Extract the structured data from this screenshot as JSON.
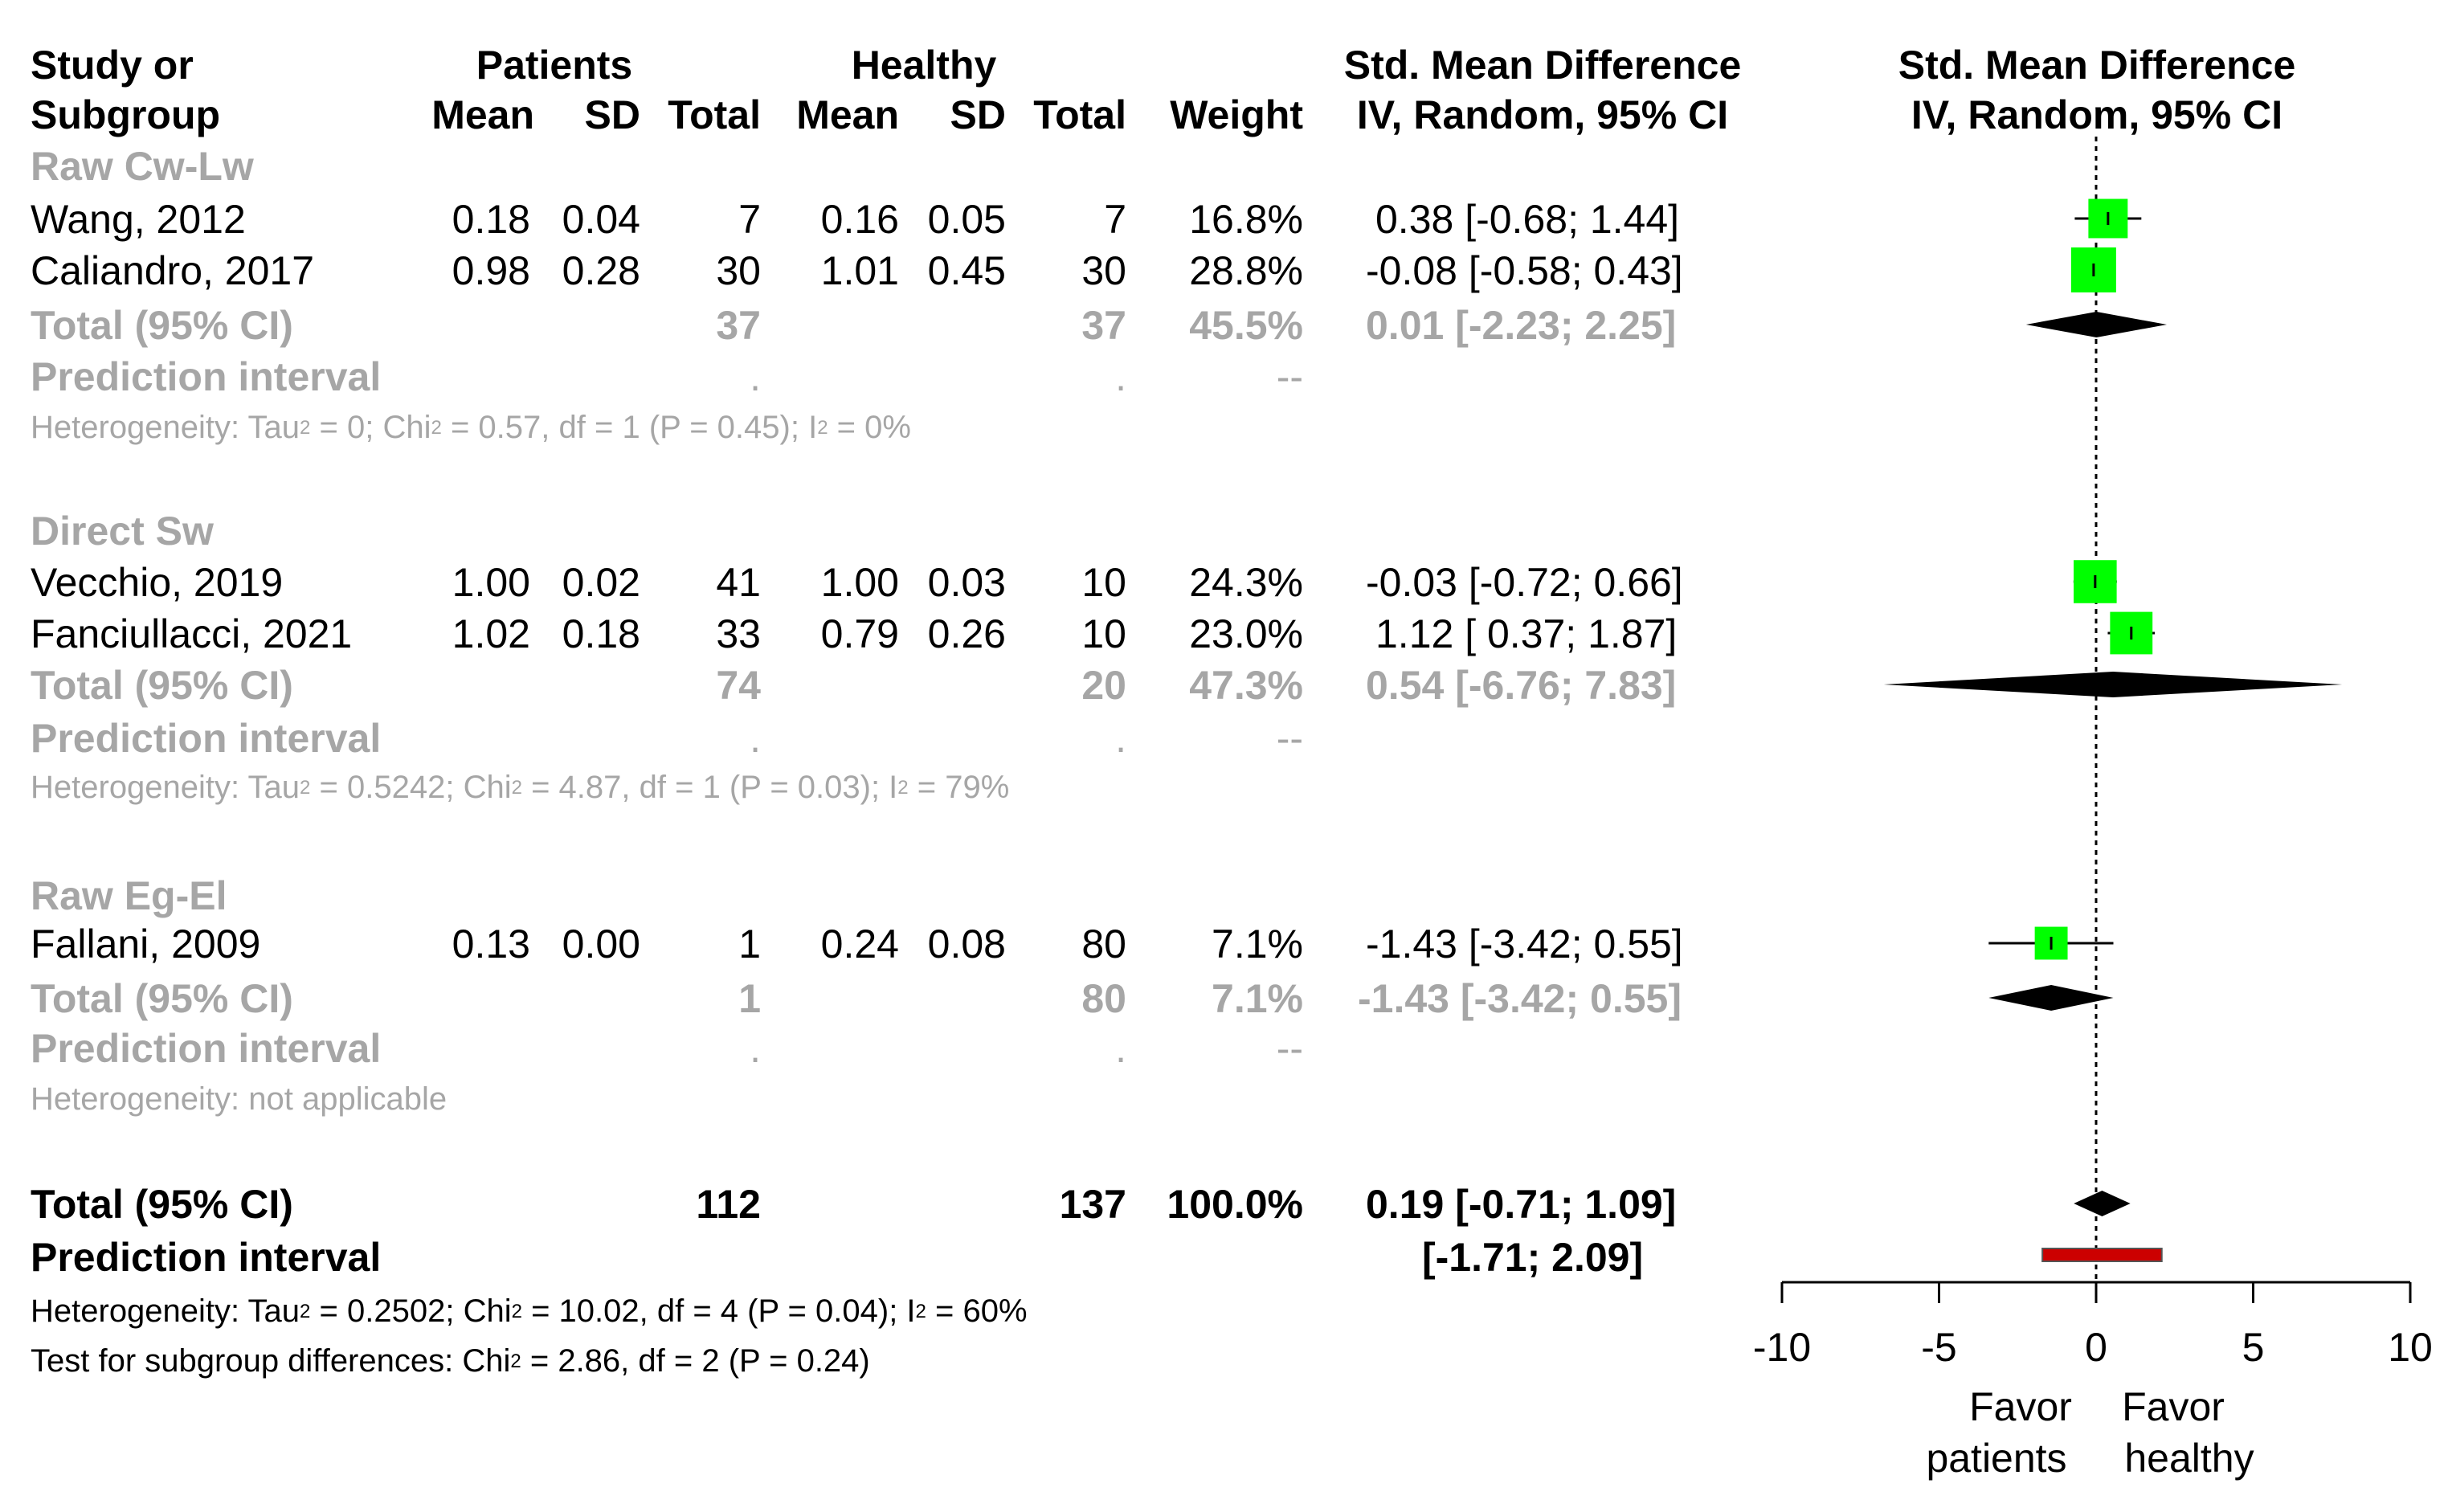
{
  "headers": {
    "study_line1": "Study or",
    "study_line2": "Subgroup",
    "patients": "Patients",
    "healthy": "Healthy",
    "mean": "Mean",
    "sd": "SD",
    "total": "Total",
    "weight": "Weight",
    "smd_line1": "Std. Mean Difference",
    "smd_line2": "IV, Random, 95% CI",
    "plot_line1": "Std. Mean Difference",
    "plot_line2": "IV, Random, 95% CI"
  },
  "subgroups": [
    {
      "label": "Raw Cw-Lw",
      "studies": [
        {
          "name": "Wang, 2012",
          "p_mean": "0.18",
          "p_sd": "0.04",
          "p_total": "7",
          "h_mean": "0.16",
          "h_sd": "0.05",
          "h_total": "7",
          "weight": "16.8%",
          "ci": "0.38 [-0.68; 1.44]"
        },
        {
          "name": "Caliandro, 2017",
          "p_mean": "0.98",
          "p_sd": "0.28",
          "p_total": "30",
          "h_mean": "1.01",
          "h_sd": "0.45",
          "h_total": "30",
          "weight": "28.8%",
          "ci": "-0.08 [-0.58; 0.43]"
        }
      ],
      "total_label": "Total (95% CI)",
      "total_p": "37",
      "total_h": "37",
      "total_weight": "45.5%",
      "total_ci": "0.01 [-2.23; 2.25]",
      "pi_label": "Prediction interval",
      "pi_p_dot": ".",
      "pi_h_dot": ".",
      "pi_weight": "--",
      "het_parts": [
        "Heterogeneity: Tau",
        "2",
        " = 0; Chi",
        "2",
        " = 0.57, df = 1 (P = 0.45); I",
        "2",
        " = 0%"
      ]
    },
    {
      "label": "Direct Sw",
      "studies": [
        {
          "name": "Vecchio, 2019",
          "p_mean": "1.00",
          "p_sd": "0.02",
          "p_total": "41",
          "h_mean": "1.00",
          "h_sd": "0.03",
          "h_total": "10",
          "weight": "24.3%",
          "ci": "-0.03 [-0.72; 0.66]"
        },
        {
          "name": "Fanciullacci, 2021",
          "p_mean": "1.02",
          "p_sd": "0.18",
          "p_total": "33",
          "h_mean": "0.79",
          "h_sd": "0.26",
          "h_total": "10",
          "weight": "23.0%",
          "ci": "1.12 [ 0.37; 1.87]"
        }
      ],
      "total_label": "Total (95% CI)",
      "total_p": "74",
      "total_h": "20",
      "total_weight": "47.3%",
      "total_ci": "0.54 [-6.76; 7.83]",
      "pi_label": "Prediction interval",
      "pi_p_dot": ".",
      "pi_h_dot": ".",
      "pi_weight": "--",
      "het_parts": [
        "Heterogeneity: Tau",
        "2",
        " = 0.5242; Chi",
        "2",
        " = 4.87, df = 1 (P = 0.03); I",
        "2",
        " = 79%"
      ]
    },
    {
      "label": "Raw Eg-El",
      "studies": [
        {
          "name": "Fallani, 2009",
          "p_mean": "0.13",
          "p_sd": "0.00",
          "p_total": "1",
          "h_mean": "0.24",
          "h_sd": "0.08",
          "h_total": "80",
          "weight": "7.1%",
          "ci": "-1.43 [-3.42; 0.55]"
        }
      ],
      "total_label": "Total (95% CI)",
      "total_p": "1",
      "total_h": "80",
      "total_weight": "7.1%",
      "total_ci": "-1.43 [-3.42; 0.55]",
      "pi_label": "Prediction interval",
      "pi_p_dot": ".",
      "pi_h_dot": ".",
      "pi_weight": "--",
      "het_text": "Heterogeneity: not applicable"
    }
  ],
  "overall": {
    "total_label": "Total (95% CI)",
    "total_p": "112",
    "total_h": "137",
    "total_weight": "100.0%",
    "total_ci": "0.19 [-0.71; 1.09]",
    "pi_label": "Prediction interval",
    "pi_ci": "[-1.71; 2.09]",
    "het_parts": [
      "Heterogeneity: Tau",
      "2",
      " = 0.2502; Chi",
      "2",
      " = 10.02, df = 4 (P = 0.04); I",
      "2",
      " = 60%"
    ],
    "test_parts": [
      "Test for subgroup differences: Chi",
      "2",
      " = 2.86, df = 2 (P = 0.24)"
    ]
  },
  "axis": {
    "favor_left_1": "Favor",
    "favor_left_2": "patients",
    "favor_right_1": "Favor",
    "favor_right_2": "healthy"
  },
  "colors": {
    "square": "#00ff00",
    "diamond": "#000000",
    "prediction_bar": "#cc0000",
    "grey_text": "#a6a6a6"
  },
  "chart_data": {
    "type": "forest",
    "xlim": [
      -10,
      10
    ],
    "ticks": [
      -10,
      -5,
      0,
      5,
      10
    ],
    "tick_labels": [
      "-10",
      "-5",
      "0",
      "5",
      "10"
    ],
    "reference_line": 0,
    "studies": [
      {
        "name": "Wang, 2012",
        "est": 0.38,
        "lo": -0.68,
        "hi": 1.44,
        "weight": 16.8
      },
      {
        "name": "Caliandro, 2017",
        "est": -0.08,
        "lo": -0.58,
        "hi": 0.43,
        "weight": 28.8
      },
      {
        "name": "Vecchio, 2019",
        "est": -0.03,
        "lo": -0.72,
        "hi": 0.66,
        "weight": 24.3
      },
      {
        "name": "Fanciullacci, 2021",
        "est": 1.12,
        "lo": 0.37,
        "hi": 1.87,
        "weight": 23.0
      },
      {
        "name": "Fallani, 2009",
        "est": -1.43,
        "lo": -3.42,
        "hi": 0.55,
        "weight": 7.1
      }
    ],
    "subgroup_totals": [
      {
        "name": "Raw Cw-Lw",
        "est": 0.01,
        "lo": -2.23,
        "hi": 2.25
      },
      {
        "name": "Direct Sw",
        "est": 0.54,
        "lo": -6.76,
        "hi": 7.83
      },
      {
        "name": "Raw Eg-El",
        "est": -1.43,
        "lo": -3.42,
        "hi": 0.55
      }
    ],
    "overall": {
      "est": 0.19,
      "lo": -0.71,
      "hi": 1.09
    },
    "prediction_interval": {
      "lo": -1.71,
      "hi": 2.09
    }
  }
}
